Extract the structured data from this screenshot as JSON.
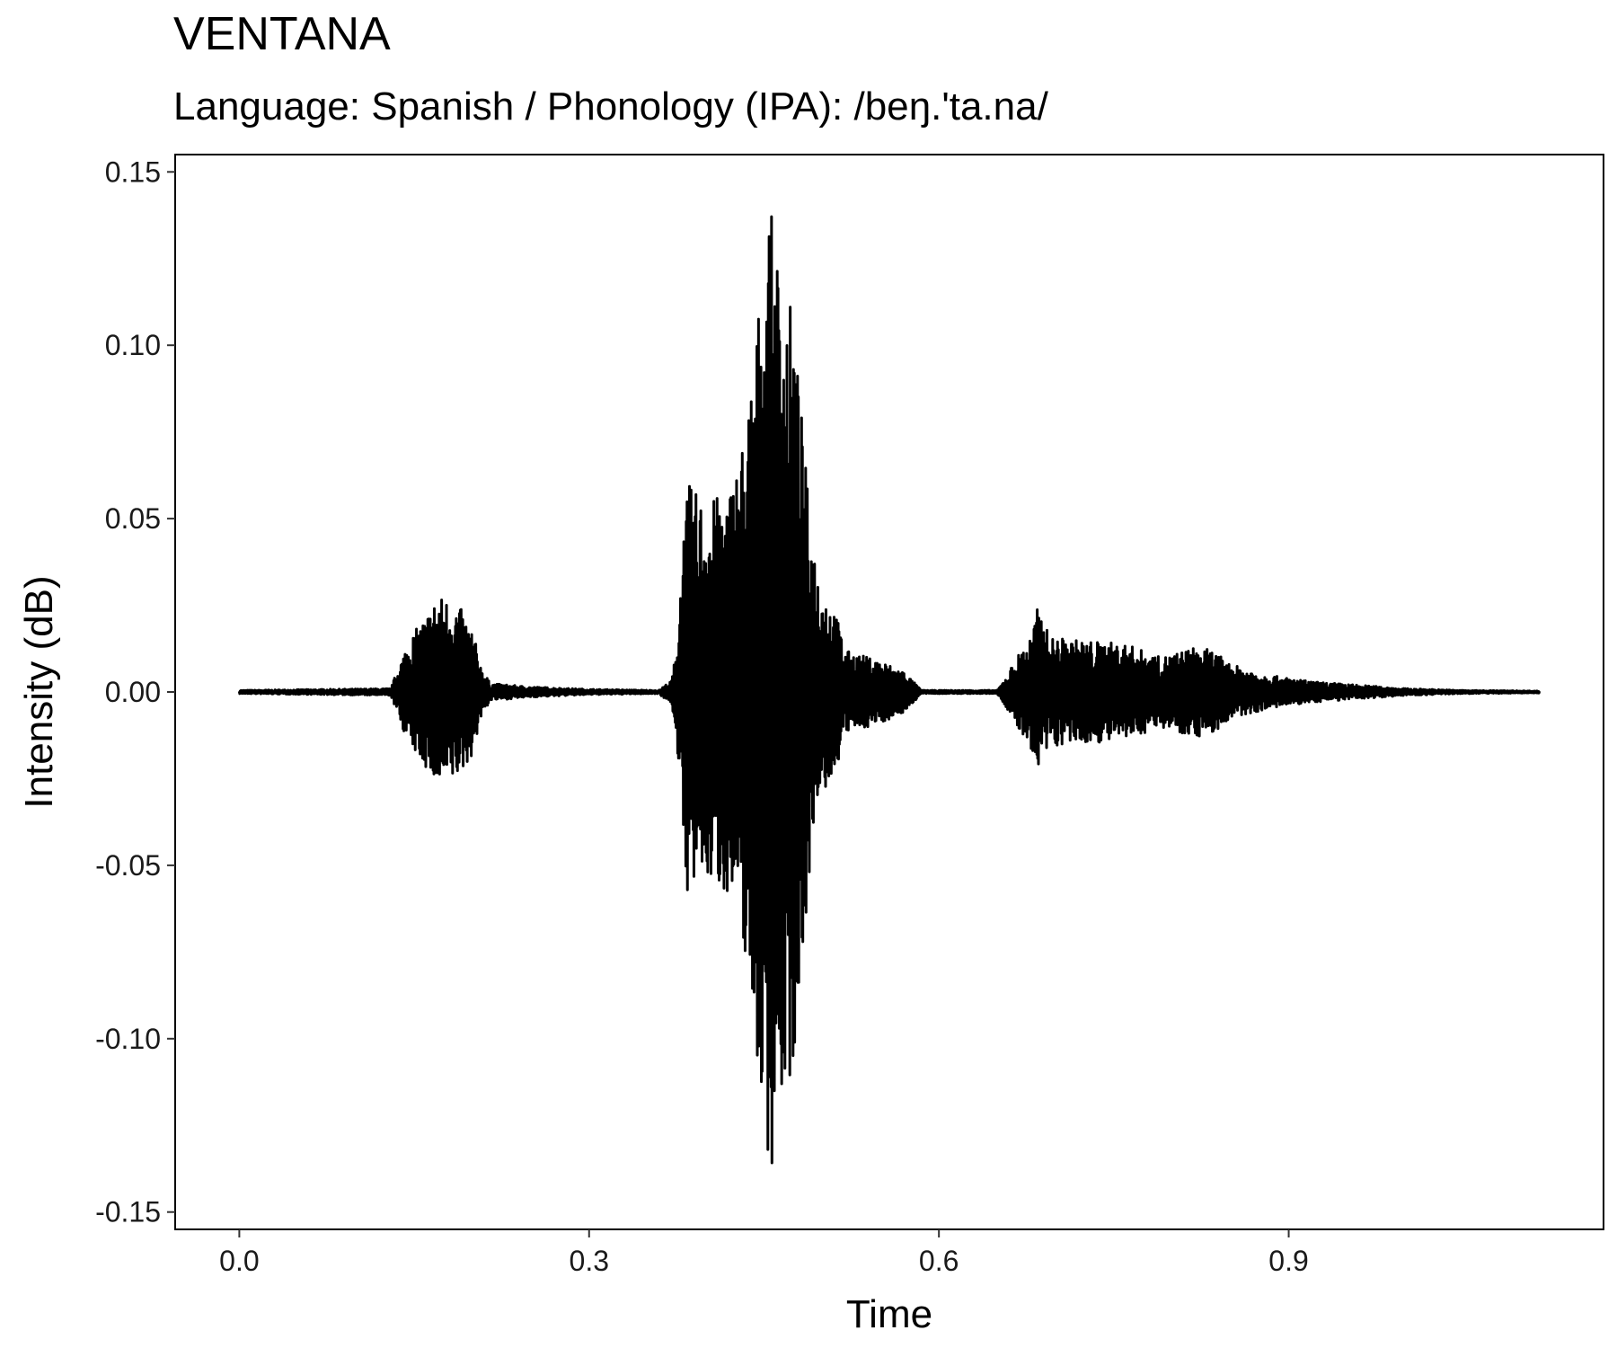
{
  "title": "VENTANA",
  "subtitle": "Language: Spanish / Phonology (IPA): /beŋ.'ta.na/",
  "chart_data": {
    "type": "line",
    "title": "VENTANA",
    "subtitle": "Language: Spanish / Phonology (IPA): /beŋ.'ta.na/",
    "xlabel": "Time",
    "ylabel": "Intensity (dB)",
    "xlim": [
      -0.055,
      1.17
    ],
    "ylim": [
      -0.155,
      0.155
    ],
    "x_ticks": [
      0.0,
      0.3,
      0.6,
      0.9
    ],
    "x_tick_labels": [
      "0.0",
      "0.3",
      "0.6",
      "0.9"
    ],
    "y_ticks": [
      0.15,
      0.1,
      0.05,
      0.0,
      -0.05,
      -0.1,
      -0.15
    ],
    "y_tick_labels": [
      "0.15",
      "0.10",
      "0.05",
      "0.00",
      "-0.05",
      "-0.10",
      "-0.15"
    ],
    "grid": false,
    "line_color": "#000000",
    "series": [
      {
        "envelope_points": [
          [
            0.0,
            0.0005
          ],
          [
            0.13,
            0.001
          ],
          [
            0.135,
            0.006
          ],
          [
            0.145,
            0.015
          ],
          [
            0.16,
            0.022
          ],
          [
            0.17,
            0.028
          ],
          [
            0.18,
            0.027
          ],
          [
            0.19,
            0.024
          ],
          [
            0.2,
            0.018
          ],
          [
            0.207,
            0.008
          ],
          [
            0.215,
            0.0025
          ],
          [
            0.25,
            0.0015
          ],
          [
            0.3,
            0.0008
          ],
          [
            0.36,
            0.0005
          ],
          [
            0.365,
            0.002
          ],
          [
            0.37,
            0.003
          ],
          [
            0.375,
            0.012
          ],
          [
            0.38,
            0.045
          ],
          [
            0.385,
            0.06
          ],
          [
            0.4,
            0.055
          ],
          [
            0.42,
            0.058
          ],
          [
            0.435,
            0.078
          ],
          [
            0.445,
            0.11
          ],
          [
            0.455,
            0.14
          ],
          [
            0.465,
            0.12
          ],
          [
            0.475,
            0.11
          ],
          [
            0.49,
            0.048
          ],
          [
            0.5,
            0.03
          ],
          [
            0.51,
            0.025
          ],
          [
            0.52,
            0.012
          ],
          [
            0.55,
            0.009
          ],
          [
            0.57,
            0.006
          ],
          [
            0.585,
            0.0005
          ],
          [
            0.65,
            0.0005
          ],
          [
            0.655,
            0.003
          ],
          [
            0.67,
            0.012
          ],
          [
            0.68,
            0.017
          ],
          [
            0.685,
            0.025
          ],
          [
            0.695,
            0.016
          ],
          [
            0.72,
            0.015
          ],
          [
            0.76,
            0.014
          ],
          [
            0.79,
            0.01
          ],
          [
            0.81,
            0.012
          ],
          [
            0.82,
            0.013
          ],
          [
            0.835,
            0.012
          ],
          [
            0.85,
            0.008
          ],
          [
            0.88,
            0.005
          ],
          [
            0.92,
            0.003
          ],
          [
            0.96,
            0.002
          ],
          [
            1.0,
            0.001
          ],
          [
            1.05,
            0.0005
          ],
          [
            1.115,
            0.0003
          ]
        ]
      }
    ]
  }
}
